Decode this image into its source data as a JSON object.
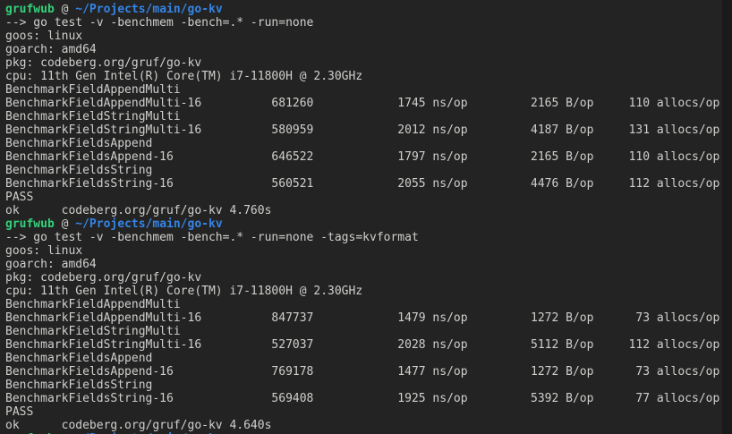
{
  "colors": {
    "background": "#232323",
    "foreground": "#d0cfcc",
    "prompt_user": "#33d17a",
    "prompt_path": "#3584e4",
    "scrollbar_track": "#1a1a1a"
  },
  "prompt": {
    "user": "grufwub",
    "separator": " @ ",
    "path": "~/Projects/main/go-kv"
  },
  "command_prefix": "--> ",
  "units": {
    "ns": "ns/op",
    "bytes": "B/op",
    "allocs": "allocs/op"
  },
  "sessions": [
    {
      "command": "go test -v -benchmem -bench=.* -run=none",
      "env_lines": [
        "goos: linux",
        "goarch: amd64",
        "pkg: codeberg.org/gruf/go-kv",
        "cpu: 11th Gen Intel(R) Core(TM) i7-11800H @ 2.30GHz"
      ],
      "benchmarks": [
        {
          "group": "BenchmarkFieldAppendMulti",
          "name": "BenchmarkFieldAppendMulti-16",
          "iterations": "681260",
          "ns_per_op": "1745",
          "bytes_per_op": "2165",
          "allocs_per_op": "110"
        },
        {
          "group": "BenchmarkFieldStringMulti",
          "name": "BenchmarkFieldStringMulti-16",
          "iterations": "580959",
          "ns_per_op": "2012",
          "bytes_per_op": "4187",
          "allocs_per_op": "131"
        },
        {
          "group": "BenchmarkFieldsAppend",
          "name": "BenchmarkFieldsAppend-16",
          "iterations": "646522",
          "ns_per_op": "1797",
          "bytes_per_op": "2165",
          "allocs_per_op": "110"
        },
        {
          "group": "BenchmarkFieldsString",
          "name": "BenchmarkFieldsString-16",
          "iterations": "560521",
          "ns_per_op": "2055",
          "bytes_per_op": "4476",
          "allocs_per_op": "112"
        }
      ],
      "result": "PASS",
      "ok": {
        "status": "ok",
        "package": "codeberg.org/gruf/go-kv",
        "duration": "4.760s"
      }
    },
    {
      "command": "go test -v -benchmem -bench=.* -run=none -tags=kvformat",
      "env_lines": [
        "goos: linux",
        "goarch: amd64",
        "pkg: codeberg.org/gruf/go-kv",
        "cpu: 11th Gen Intel(R) Core(TM) i7-11800H @ 2.30GHz"
      ],
      "benchmarks": [
        {
          "group": "BenchmarkFieldAppendMulti",
          "name": "BenchmarkFieldAppendMulti-16",
          "iterations": "847737",
          "ns_per_op": "1479",
          "bytes_per_op": "1272",
          "allocs_per_op": "73"
        },
        {
          "group": "BenchmarkFieldStringMulti",
          "name": "BenchmarkFieldStringMulti-16",
          "iterations": "527037",
          "ns_per_op": "2028",
          "bytes_per_op": "5112",
          "allocs_per_op": "112"
        },
        {
          "group": "BenchmarkFieldsAppend",
          "name": "BenchmarkFieldsAppend-16",
          "iterations": "769178",
          "ns_per_op": "1477",
          "bytes_per_op": "1272",
          "allocs_per_op": "73"
        },
        {
          "group": "BenchmarkFieldsString",
          "name": "BenchmarkFieldsString-16",
          "iterations": "569408",
          "ns_per_op": "1925",
          "bytes_per_op": "5392",
          "allocs_per_op": "77"
        }
      ],
      "result": "PASS",
      "ok": {
        "status": "ok",
        "package": "codeberg.org/gruf/go-kv",
        "duration": "4.640s"
      }
    }
  ],
  "trailing_partial_prompt": true
}
